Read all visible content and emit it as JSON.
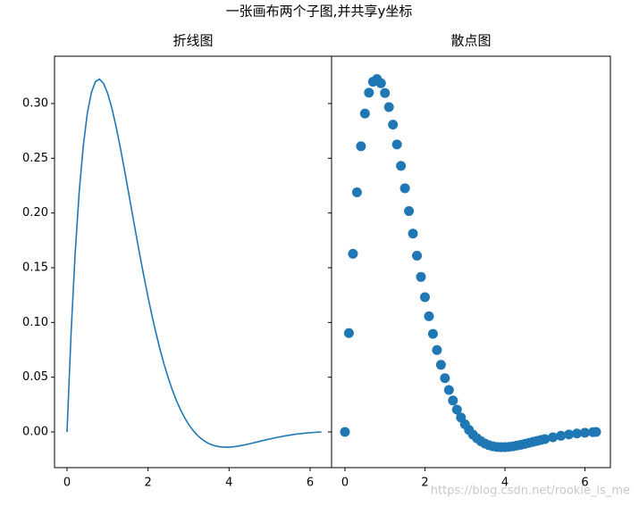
{
  "figure_title": "一张画布两个子图,并共享y坐标",
  "watermark": "https://blog.csdn.net/rookie_is_me",
  "chart_data": [
    {
      "type": "line",
      "title": "折线图",
      "color": "#1f77b4",
      "x": [
        0,
        0.1,
        0.2,
        0.3,
        0.4,
        0.5,
        0.6,
        0.7,
        0.8,
        0.9,
        1.0,
        1.1,
        1.2,
        1.3,
        1.4,
        1.5,
        1.6,
        1.7,
        1.8,
        1.9,
        2.0,
        2.1,
        2.2,
        2.3,
        2.4,
        2.5,
        2.6,
        2.7,
        2.8,
        2.9,
        3.0,
        3.1,
        3.2,
        3.3,
        3.4,
        3.5,
        3.6,
        3.7,
        3.8,
        3.9,
        4.0,
        4.1,
        4.2,
        4.3,
        4.4,
        4.5,
        4.6,
        4.7,
        4.8,
        4.9,
        5.0,
        5.2,
        5.4,
        5.6,
        5.8,
        6.0,
        6.2,
        6.28
      ],
      "values": [
        0,
        0.0903,
        0.1627,
        0.2189,
        0.261,
        0.2908,
        0.3099,
        0.3199,
        0.3223,
        0.3185,
        0.3096,
        0.2967,
        0.2807,
        0.2626,
        0.243,
        0.2226,
        0.2018,
        0.1812,
        0.161,
        0.1416,
        0.1231,
        0.1057,
        0.0896,
        0.0748,
        0.0613,
        0.0491,
        0.0383,
        0.0287,
        0.0204,
        0.0132,
        0.007,
        0.0019,
        -0.0024,
        -0.0058,
        -0.0085,
        -0.0106,
        -0.0121,
        -0.0131,
        -0.0137,
        -0.0139,
        -0.0139,
        -0.0136,
        -0.0131,
        -0.0124,
        -0.0117,
        -0.0109,
        -0.01,
        -0.0091,
        -0.0082,
        -0.0073,
        -0.0065,
        -0.0049,
        -0.0035,
        -0.0023,
        -0.0014,
        -0.0007,
        -0.0002,
        0
      ],
      "xlim": [
        -0.309,
        6.53
      ],
      "xticks": [
        0,
        2,
        4,
        6
      ],
      "ylim": [
        -0.0326,
        0.3432
      ],
      "yticks": [
        {
          "value": 0,
          "label": "0.00"
        },
        {
          "value": 0.05,
          "label": "0.05"
        },
        {
          "value": 0.1,
          "label": "0.10"
        },
        {
          "value": 0.15,
          "label": "0.15"
        },
        {
          "value": 0.2,
          "label": "0.20"
        },
        {
          "value": 0.25,
          "label": "0.25"
        },
        {
          "value": 0.3,
          "label": "0.30"
        }
      ]
    },
    {
      "type": "scatter",
      "title": "散点图",
      "color": "#1f77b4",
      "x": [
        0,
        0.1,
        0.2,
        0.3,
        0.4,
        0.5,
        0.6,
        0.7,
        0.8,
        0.9,
        1.0,
        1.1,
        1.2,
        1.3,
        1.4,
        1.5,
        1.6,
        1.7,
        1.8,
        1.9,
        2.0,
        2.1,
        2.2,
        2.3,
        2.4,
        2.5,
        2.6,
        2.7,
        2.8,
        2.9,
        3.0,
        3.1,
        3.2,
        3.3,
        3.4,
        3.5,
        3.6,
        3.7,
        3.8,
        3.9,
        4.0,
        4.1,
        4.2,
        4.3,
        4.4,
        4.5,
        4.6,
        4.7,
        4.8,
        4.9,
        5.0,
        5.2,
        5.4,
        5.6,
        5.8,
        6.0,
        6.2,
        6.28
      ],
      "values": [
        0,
        0.0903,
        0.1627,
        0.2189,
        0.261,
        0.2908,
        0.3099,
        0.3199,
        0.3223,
        0.3185,
        0.3096,
        0.2967,
        0.2807,
        0.2626,
        0.243,
        0.2226,
        0.2018,
        0.1812,
        0.161,
        0.1416,
        0.1231,
        0.1057,
        0.0896,
        0.0748,
        0.0613,
        0.0491,
        0.0383,
        0.0287,
        0.0204,
        0.0132,
        0.007,
        0.0019,
        -0.0024,
        -0.0058,
        -0.0085,
        -0.0106,
        -0.0121,
        -0.0131,
        -0.0137,
        -0.0139,
        -0.0139,
        -0.0136,
        -0.0131,
        -0.0124,
        -0.0117,
        -0.0109,
        -0.01,
        -0.0091,
        -0.0082,
        -0.0073,
        -0.0065,
        -0.0049,
        -0.0035,
        -0.0023,
        -0.0014,
        -0.0007,
        -0.0002,
        0
      ],
      "xlim": [
        -0.335,
        6.637
      ],
      "xticks": [
        0,
        2,
        4,
        6
      ],
      "ylim": [
        -0.0326,
        0.3432
      ]
    }
  ]
}
